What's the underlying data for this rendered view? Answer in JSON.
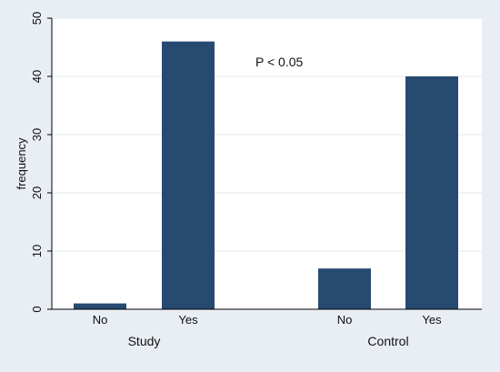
{
  "chart_data": {
    "type": "bar",
    "ylabel": "frequency",
    "ylim": [
      0,
      50
    ],
    "yticks": [
      0,
      10,
      20,
      30,
      40,
      50
    ],
    "grid": true,
    "annotation": "P < 0.05",
    "groups": [
      {
        "label": "Study",
        "bars": [
          {
            "label": "No",
            "value": 1
          },
          {
            "label": "Yes",
            "value": 46
          }
        ]
      },
      {
        "label": "Control",
        "bars": [
          {
            "label": "No",
            "value": 7
          },
          {
            "label": "Yes",
            "value": 40
          }
        ]
      }
    ],
    "colors": {
      "bar": "#274a70",
      "background": "#e8eef3",
      "plot_background": "#ffffff",
      "grid": "#e3e8ed",
      "axis": "#000000"
    }
  }
}
